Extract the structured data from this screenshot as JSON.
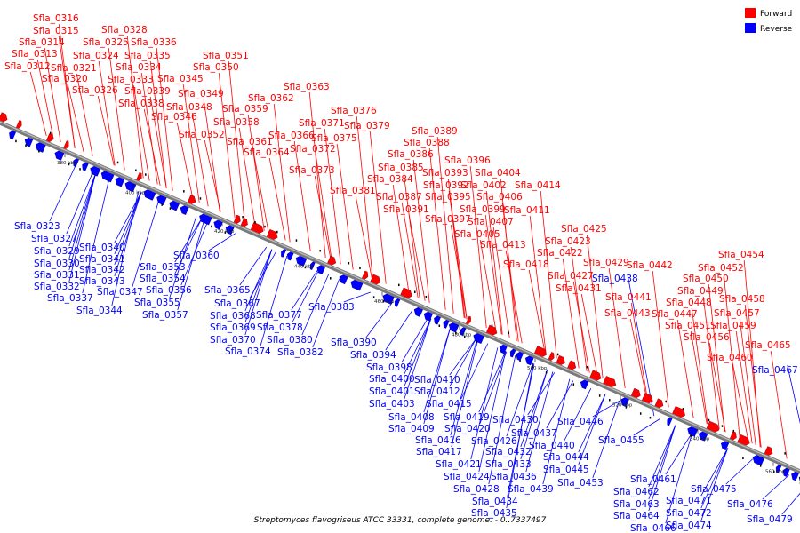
{
  "caption": "Streptomyces flavogriseus ATCC 33331, complete genome. - 0..7337497",
  "legend": [
    {
      "label": "Forward",
      "color": "#ff0000"
    },
    {
      "label": "Reverse",
      "color": "#0000ff"
    }
  ],
  "colors": {
    "forward": "#ff0000",
    "reverse": "#0000ff",
    "backbone": "#808080"
  },
  "ticks": [
    "380 kbp",
    "400 kbp",
    "420 kbp",
    "440 kbp",
    "460 kbp",
    "480 kbp",
    "500 kbp",
    "520 kbp",
    "540 kbp",
    "560 kbp"
  ],
  "forward_genes": [
    "Sfla_0316",
    "Sfla_0315",
    "Sfla_0314",
    "Sfla_0313",
    "Sfla_0312",
    "Sfla_0321",
    "Sfla_0320",
    "Sfla_0328",
    "Sfla_0325",
    "Sfla_0324",
    "Sfla_0326",
    "Sfla_0336",
    "Sfla_0335",
    "Sfla_0334",
    "Sfla_0333",
    "Sfla_0339",
    "Sfla_0338",
    "Sfla_0351",
    "Sfla_0350",
    "Sfla_0345",
    "Sfla_0349",
    "Sfla_0348",
    "Sfla_0346",
    "Sfla_0352",
    "Sfla_0363",
    "Sfla_0362",
    "Sfla_0359",
    "Sfla_0358",
    "Sfla_0361",
    "Sfla_0364",
    "Sfla_0376",
    "Sfla_0371",
    "Sfla_0366",
    "Sfla_0379",
    "Sfla_0372",
    "Sfla_0375",
    "Sfla_0373",
    "Sfla_0381",
    "Sfla_0389",
    "Sfla_0388",
    "Sfla_0386",
    "Sfla_0385",
    "Sfla_0384",
    "Sfla_0387",
    "Sfla_0391",
    "Sfla_0396",
    "Sfla_0393",
    "Sfla_0392",
    "Sfla_0395",
    "Sfla_0397",
    "Sfla_0404",
    "Sfla_0402",
    "Sfla_0406",
    "Sfla_0399",
    "Sfla_0407",
    "Sfla_0405",
    "Sfla_0414",
    "Sfla_0411",
    "Sfla_0413",
    "Sfla_0425",
    "Sfla_0423",
    "Sfla_0422",
    "Sfla_0418",
    "Sfla_0429",
    "Sfla_0427",
    "Sfla_0431",
    "Sfla_0442",
    "Sfla_0441",
    "Sfla_0443",
    "Sfla_0449",
    "Sfla_0450",
    "Sfla_0448",
    "Sfla_0447",
    "Sfla_0451",
    "Sfla_0454",
    "Sfla_0452",
    "Sfla_0458",
    "Sfla_0457",
    "Sfla_0459",
    "Sfla_0456",
    "Sfla_0465",
    "Sfla_0460"
  ],
  "reverse_genes": [
    "Sfla_0323",
    "Sfla_0327",
    "Sfla_0329",
    "Sfla_0330",
    "Sfla_0331",
    "Sfla_0332",
    "Sfla_0340",
    "Sfla_0341",
    "Sfla_0342",
    "Sfla_0343",
    "Sfla_0337",
    "Sfla_0347",
    "Sfla_0344",
    "Sfla_0360",
    "Sfla_0353",
    "Sfla_0354",
    "Sfla_0356",
    "Sfla_0355",
    "Sfla_0357",
    "Sfla_0365",
    "Sfla_0367",
    "Sfla_0368",
    "Sfla_0369",
    "Sfla_0370",
    "Sfla_0374",
    "Sfla_0377",
    "Sfla_0378",
    "Sfla_0380",
    "Sfla_0382",
    "Sfla_0383",
    "Sfla_0390",
    "Sfla_0394",
    "Sfla_0398",
    "Sfla_0400",
    "Sfla_0401",
    "Sfla_0403",
    "Sfla_0408",
    "Sfla_0409",
    "Sfla_0410",
    "Sfla_0412",
    "Sfla_0415",
    "Sfla_0419",
    "Sfla_0420",
    "Sfla_0416",
    "Sfla_0417",
    "Sfla_0421",
    "Sfla_0424",
    "Sfla_0426",
    "Sfla_0428",
    "Sfla_0432",
    "Sfla_0433",
    "Sfla_0436",
    "Sfla_0434",
    "Sfla_0435",
    "Sfla_0439",
    "Sfla_0430",
    "Sfla_0437",
    "Sfla_0440",
    "Sfla_0444",
    "Sfla_0445",
    "Sfla_0453",
    "Sfla_0446",
    "Sfla_0438",
    "Sfla_0455",
    "Sfla_0461",
    "Sfla_0462",
    "Sfla_0463",
    "Sfla_0464",
    "Sfla_0466",
    "Sfla_0471",
    "Sfla_0472",
    "Sfla_0474",
    "Sfla_0475",
    "Sfla_0476",
    "Sfla_0479",
    "Sfla_0467"
  ]
}
